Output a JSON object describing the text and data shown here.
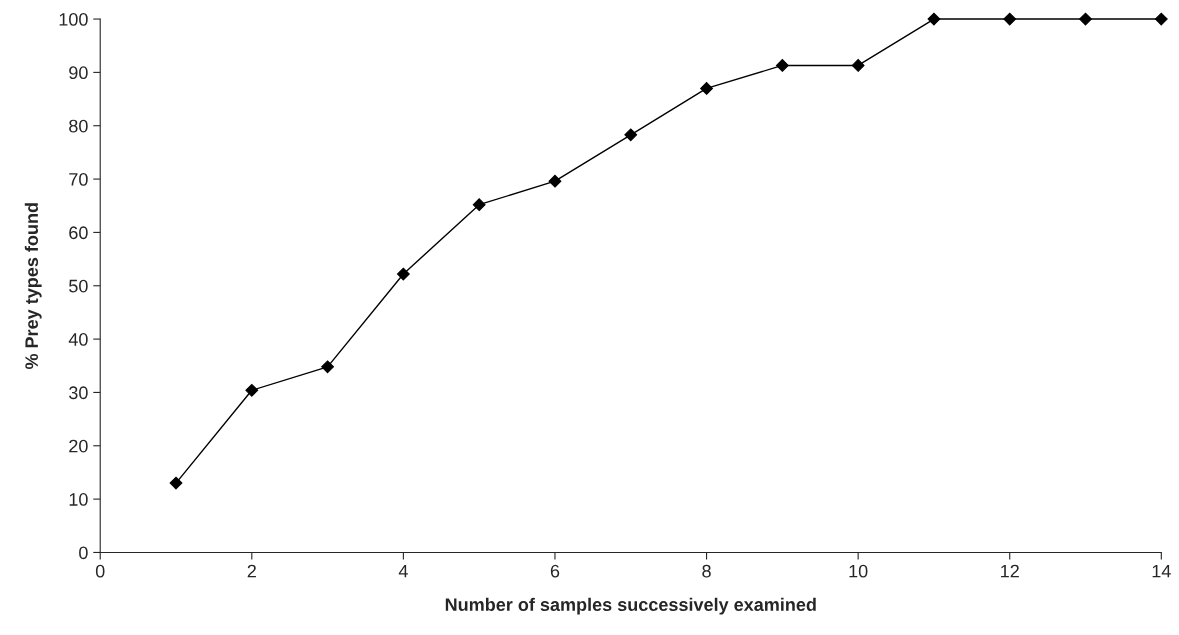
{
  "chart_data": {
    "type": "line",
    "xlabel": "Number of samples successively examined",
    "ylabel": "% Prey types found",
    "x": [
      1,
      2,
      3,
      4,
      5,
      6,
      7,
      8,
      9,
      10,
      11,
      12,
      13,
      14
    ],
    "series": [
      {
        "color": "#000000",
        "values": [
          13,
          30.4,
          34.8,
          52.2,
          65.2,
          69.6,
          78.3,
          87,
          91.3,
          91.3,
          100,
          100,
          100,
          100
        ]
      }
    ],
    "xlim": [
      0,
      14
    ],
    "xticks": [
      0,
      2,
      4,
      6,
      8,
      10,
      12,
      14
    ],
    "ylim": [
      0,
      100
    ],
    "yticks": [
      0,
      10,
      20,
      30,
      40,
      50,
      60,
      70,
      80,
      90,
      100
    ],
    "marker": "diamond",
    "line_style": "solid"
  }
}
